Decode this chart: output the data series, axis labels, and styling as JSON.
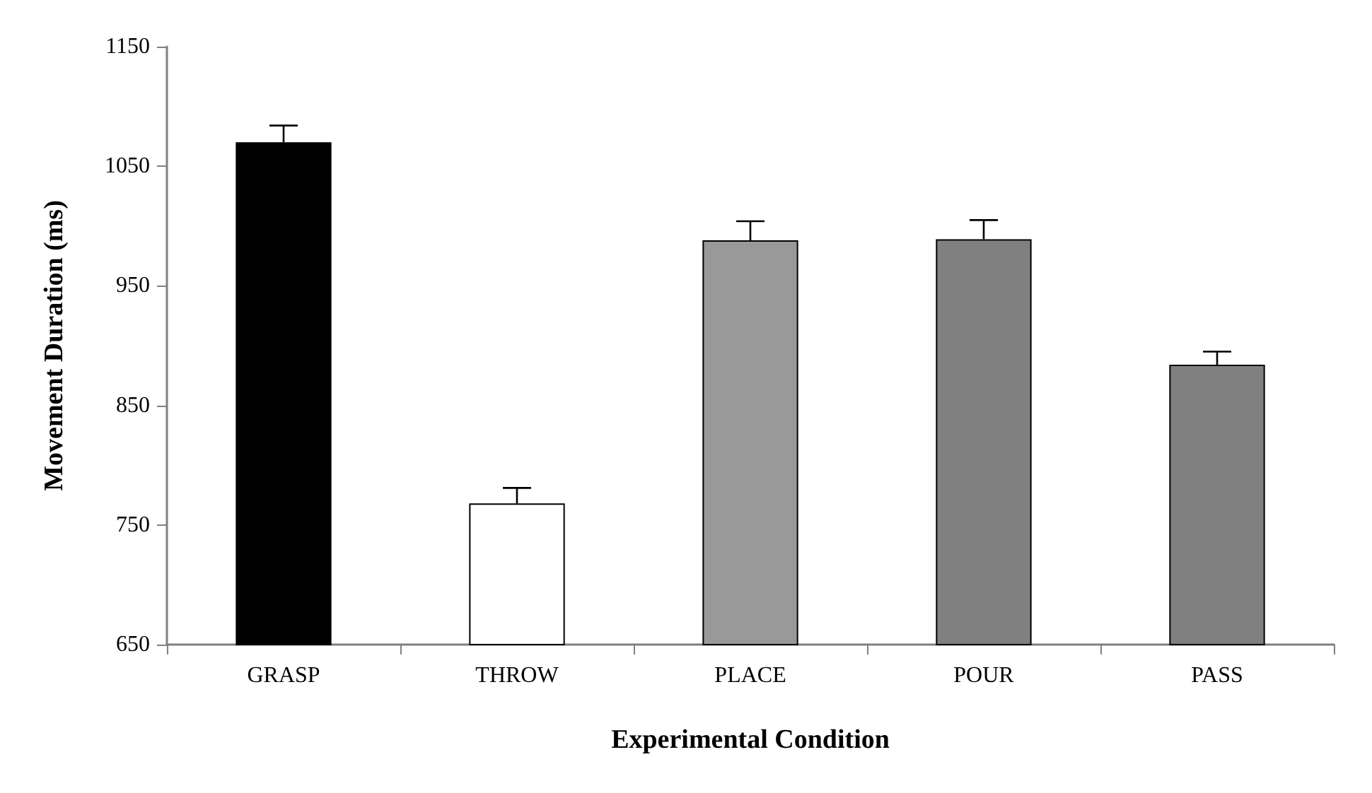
{
  "chart_data": {
    "type": "bar",
    "xlabel": "Experimental Condition",
    "ylabel": "Movement Duration (ms)",
    "categories": [
      "GRASP",
      "THROW",
      "PLACE",
      "POUR",
      "PASS"
    ],
    "values": [
      1070,
      768,
      988,
      989,
      884
    ],
    "colors": [
      "#000000",
      "#ffffff",
      "#999999",
      "#808080",
      "#808080"
    ],
    "errors": [
      [
        1070,
        1084
      ],
      [
        768,
        781
      ],
      [
        988,
        1004
      ],
      [
        989,
        1005
      ],
      [
        884,
        895
      ]
    ],
    "ylim": [
      650,
      1150
    ],
    "yticks": [
      650,
      750,
      850,
      950,
      1050,
      1150
    ],
    "grid": false
  }
}
